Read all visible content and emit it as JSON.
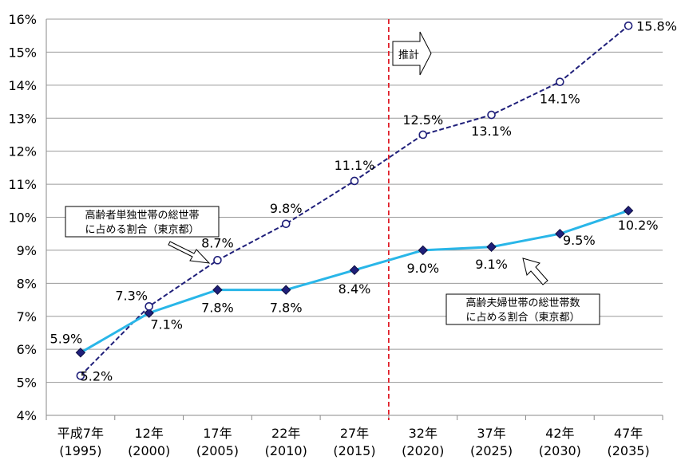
{
  "chart_data": {
    "type": "line",
    "categories": [
      [
        "平成7年",
        "(1995)"
      ],
      [
        "12年",
        "(2000)"
      ],
      [
        "17年",
        "(2005)"
      ],
      [
        "22年",
        "(2010)"
      ],
      [
        "27年",
        "(2015)"
      ],
      [
        "32年",
        "(2020)"
      ],
      [
        "37年",
        "(2025)"
      ],
      [
        "42年",
        "(2030)"
      ],
      [
        "47年",
        "(2035)"
      ]
    ],
    "ylim": [
      4,
      16
    ],
    "yticks": [
      "4%",
      "5%",
      "6%",
      "7%",
      "8%",
      "9%",
      "10%",
      "11%",
      "12%",
      "13%",
      "14%",
      "15%",
      "16%"
    ],
    "grid": true,
    "series": [
      {
        "name": "高齢者単独世帯の総世帯に占める割合（東京都）",
        "label_lines": [
          "高齢者単独世帯の総世帯",
          "に占める割合（東京都）"
        ],
        "values": [
          5.2,
          7.3,
          8.7,
          9.8,
          11.1,
          12.5,
          13.1,
          14.1,
          15.8
        ],
        "labels": [
          "5.2%",
          "7.3%",
          "8.7%",
          "9.8%",
          "11.1%",
          "12.5%",
          "13.1%",
          "14.1%",
          "15.8%"
        ],
        "color": "#1f1f7a",
        "style": "dashed",
        "marker": "circle"
      },
      {
        "name": "高齢夫婦世帯の総世帯数に占める割合（東京都）",
        "label_lines": [
          "高齢夫婦世帯の総世帯数",
          "に占める割合（東京都）"
        ],
        "values": [
          5.9,
          7.1,
          7.8,
          7.8,
          8.4,
          9.0,
          9.1,
          9.5,
          10.2
        ],
        "labels": [
          "5.9%",
          "7.1%",
          "7.8%",
          "7.8%",
          "8.4%",
          "9.0%",
          "9.1%",
          "9.5%",
          "10.2%"
        ],
        "color": "#29b6e8",
        "style": "solid",
        "marker": "diamond"
      }
    ],
    "annotations": {
      "forecast_label": "推計",
      "divider_color": "#e0202a"
    }
  }
}
